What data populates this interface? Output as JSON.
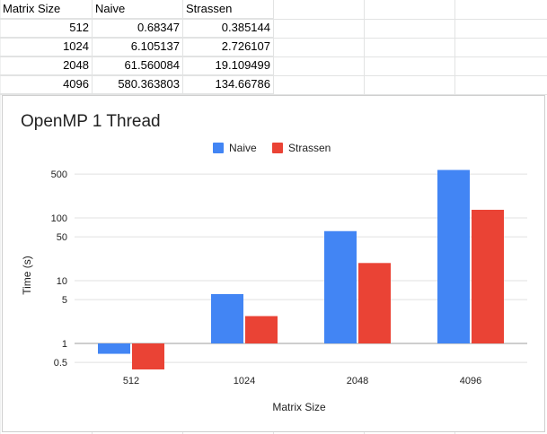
{
  "sheet": {
    "headers": [
      "Matrix Size",
      "Naive",
      "Strassen"
    ],
    "rows": [
      [
        "512",
        "0.68347",
        "0.385144"
      ],
      [
        "1024",
        "6.105137",
        "2.726107"
      ],
      [
        "2048",
        "61.560084",
        "19.109499"
      ],
      [
        "4096",
        "580.363803",
        "134.66786"
      ]
    ]
  },
  "chart": {
    "title": "OpenMP 1 Thread",
    "legend": [
      "Naive",
      "Strassen"
    ],
    "x_label": "Matrix Size",
    "y_label": "Time (s)",
    "y_ticks": [
      "500",
      "100",
      "50",
      "10",
      "5",
      "1",
      "0.5"
    ]
  },
  "colors": {
    "naive": "#4285f4",
    "strassen": "#ea4335",
    "grid": "#e2e3e3"
  },
  "chart_data": {
    "type": "bar",
    "scale": "log",
    "categories": [
      "512",
      "1024",
      "2048",
      "4096"
    ],
    "series": [
      {
        "name": "Naive",
        "values": [
          0.68347,
          6.105137,
          61.560084,
          580.363803
        ]
      },
      {
        "name": "Strassen",
        "values": [
          0.385144,
          2.726107,
          19.109499,
          134.66786
        ]
      }
    ],
    "title": "OpenMP 1 Thread",
    "xlabel": "Matrix Size",
    "ylabel": "Time (s)",
    "y_ticks": [
      0.5,
      1,
      5,
      10,
      50,
      100,
      500
    ],
    "grid": true,
    "legend_position": "top"
  }
}
